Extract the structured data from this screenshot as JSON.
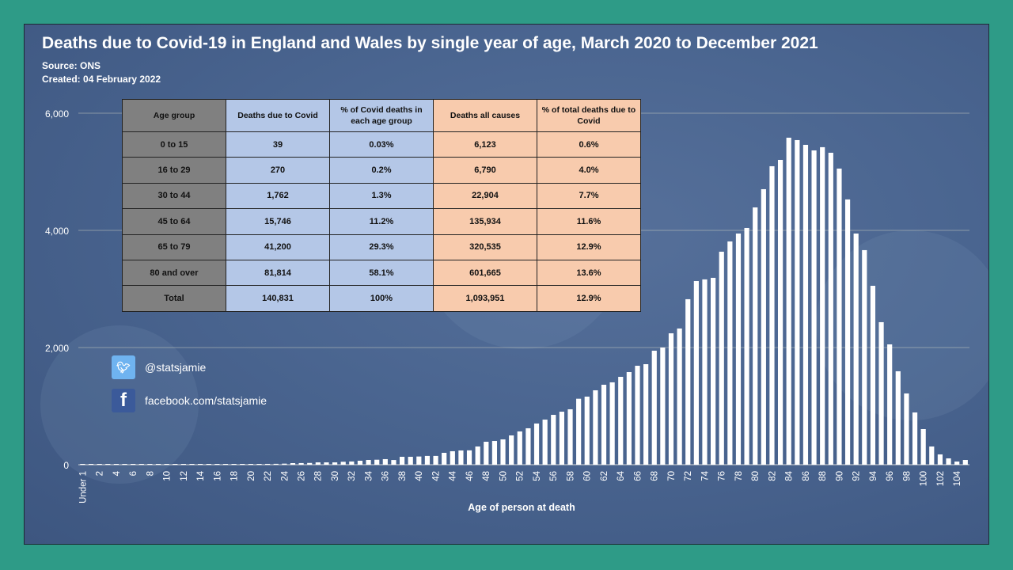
{
  "header": {
    "title": "Deaths due to Covid-19 in England and Wales by single year of age, March 2020 to December 2021",
    "source": "Source: ONS",
    "created": "Created: 04 February 2022"
  },
  "table": {
    "headers": [
      "Age group",
      "Deaths due to Covid",
      "% of Covid deaths in each age group",
      "Deaths all causes",
      "% of total deaths due to Covid"
    ],
    "rows": [
      [
        "0 to 15",
        "39",
        "0.03%",
        "6,123",
        "0.6%"
      ],
      [
        "16 to 29",
        "270",
        "0.2%",
        "6,790",
        "4.0%"
      ],
      [
        "30 to 44",
        "1,762",
        "1.3%",
        "22,904",
        "7.7%"
      ],
      [
        "45 to 64",
        "15,746",
        "11.2%",
        "135,934",
        "11.6%"
      ],
      [
        "65 to 79",
        "41,200",
        "29.3%",
        "320,535",
        "12.9%"
      ],
      [
        "80 and over",
        "81,814",
        "58.1%",
        "601,665",
        "13.6%"
      ],
      [
        "Total",
        "140,831",
        "100%",
        "1,093,951",
        "12.9%"
      ]
    ]
  },
  "social": {
    "twitter": "@statsjamie",
    "facebook": "facebook.com/statsjamie",
    "twitter_icon": "twitter-bird-icon",
    "facebook_icon": "facebook-f-icon"
  },
  "colors": {
    "border": "#2e9b87",
    "bars": "#ffffff",
    "age_group_col": "#808080",
    "covid_cols": "#b4c7e7",
    "all_cause_cols": "#f8cbad"
  },
  "chart_data": {
    "type": "bar",
    "title": "Deaths due to Covid-19 in England and Wales by single year of age, March 2020 to December 2021",
    "xlabel": "Age of person at death",
    "ylabel": "",
    "ylim": [
      0,
      6000
    ],
    "yticks": [
      "0",
      "2,000",
      "4,000",
      "6,000"
    ],
    "grid": true,
    "categories": [
      "Under 1",
      "1",
      "2",
      "3",
      "4",
      "5",
      "6",
      "7",
      "8",
      "9",
      "10",
      "11",
      "12",
      "13",
      "14",
      "15",
      "16",
      "17",
      "18",
      "19",
      "20",
      "21",
      "22",
      "23",
      "24",
      "25",
      "26",
      "27",
      "28",
      "29",
      "30",
      "31",
      "32",
      "33",
      "34",
      "35",
      "36",
      "37",
      "38",
      "39",
      "40",
      "41",
      "42",
      "43",
      "44",
      "45",
      "46",
      "47",
      "48",
      "49",
      "50",
      "51",
      "52",
      "53",
      "54",
      "55",
      "56",
      "57",
      "58",
      "59",
      "60",
      "61",
      "62",
      "63",
      "64",
      "65",
      "66",
      "67",
      "68",
      "69",
      "70",
      "71",
      "72",
      "73",
      "74",
      "75",
      "76",
      "77",
      "78",
      "79",
      "80",
      "81",
      "82",
      "83",
      "84",
      "85",
      "86",
      "87",
      "88",
      "89",
      "90",
      "91",
      "92",
      "93",
      "94",
      "95",
      "96",
      "97",
      "98",
      "99",
      "100",
      "101",
      "102",
      "103",
      "104",
      "105"
    ],
    "tick_labels_shown": [
      "Under 1",
      "2",
      "4",
      "6",
      "8",
      "10",
      "12",
      "14",
      "16",
      "18",
      "20",
      "22",
      "24",
      "26",
      "28",
      "30",
      "32",
      "34",
      "36",
      "38",
      "40",
      "42",
      "44",
      "46",
      "48",
      "50",
      "52",
      "54",
      "56",
      "58",
      "60",
      "62",
      "64",
      "66",
      "68",
      "70",
      "72",
      "74",
      "76",
      "78",
      "80",
      "82",
      "84",
      "86",
      "88",
      "90",
      "92",
      "94",
      "96",
      "98",
      "100",
      "102",
      "104"
    ],
    "values": [
      8,
      3,
      3,
      0,
      2,
      2,
      2,
      2,
      2,
      2,
      2,
      2,
      2,
      2,
      3,
      3,
      8,
      9,
      10,
      11,
      12,
      13,
      14,
      15,
      18,
      27,
      28,
      30,
      40,
      40,
      40,
      50,
      55,
      68,
      81,
      85,
      95,
      80,
      135,
      135,
      140,
      150,
      150,
      203,
      230,
      243,
      245,
      311,
      392,
      405,
      432,
      500,
      568,
      622,
      703,
      770,
      851,
      905,
      946,
      1126,
      1162,
      1270,
      1365,
      1406,
      1500,
      1581,
      1689,
      1716,
      1946,
      2000,
      2243,
      2325,
      2825,
      3135,
      3163,
      3190,
      3636,
      3811,
      3946,
      4041,
      4392,
      4703,
      5095,
      5203,
      5582,
      5541,
      5460,
      5365,
      5420,
      5325,
      5055,
      4528,
      3946,
      3663,
      3054,
      2433,
      2054,
      1595,
      1216,
      892,
      608,
      311,
      176,
      108,
      54,
      81
    ]
  }
}
